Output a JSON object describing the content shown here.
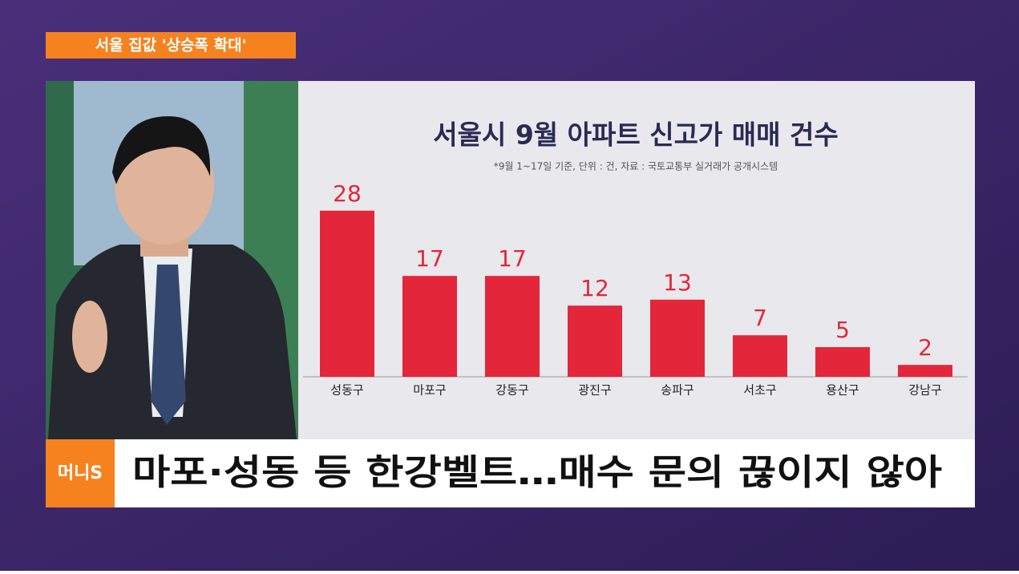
{
  "banner": "서울 집값 '상승폭 확대'",
  "logo": "머니S",
  "headline": "마포·성동 등 한강벨트…매수 문의 끊이지 않아",
  "chart_data": {
    "type": "bar",
    "title": "서울시 9월 아파트 신고가 매매 건수",
    "subtitle": "*9월 1~17일 기준, 단위 : 건, 자료 : 국토교통부 실거래가 공개시스템",
    "categories": [
      "성동구",
      "마포구",
      "강동구",
      "광진구",
      "송파구",
      "서초구",
      "용산구",
      "강남구"
    ],
    "values": [
      28,
      17,
      17,
      12,
      13,
      7,
      5,
      2
    ],
    "color": "#e3263a"
  }
}
